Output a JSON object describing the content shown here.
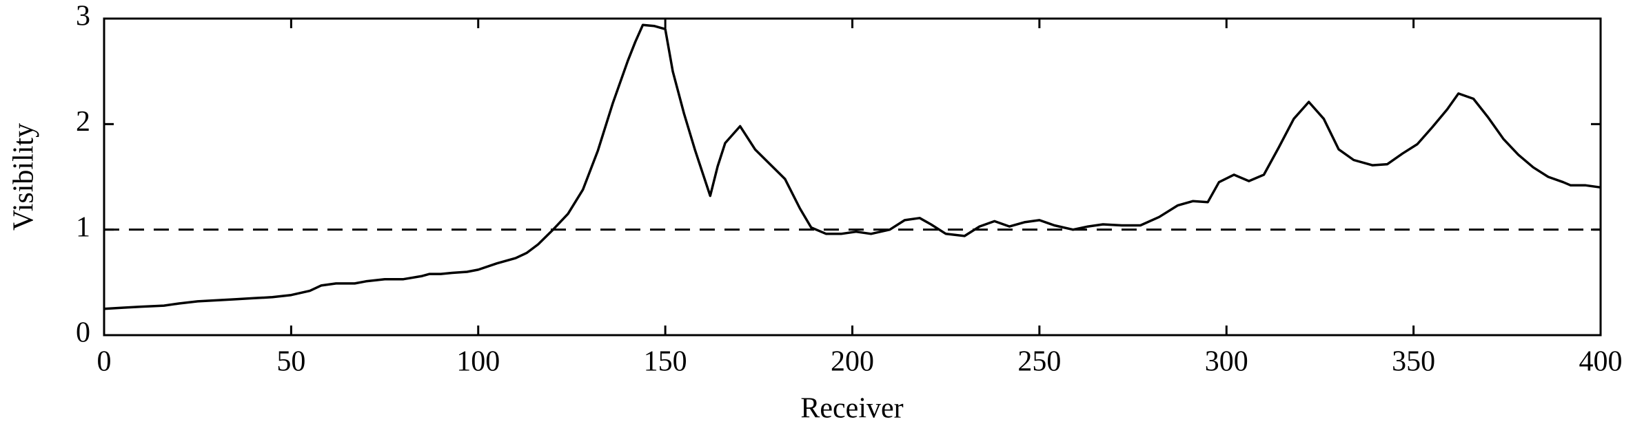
{
  "chart_data": {
    "type": "line",
    "xlabel": "Receiver",
    "ylabel": "Visibility",
    "x": [
      0,
      5,
      10,
      16,
      20,
      25,
      30,
      35,
      40,
      45,
      50,
      55,
      58,
      62,
      67,
      70,
      75,
      80,
      85,
      87,
      90,
      93,
      97,
      100,
      105,
      110,
      113,
      116,
      120,
      124,
      128,
      132,
      136,
      140,
      142,
      144,
      147,
      150,
      152,
      155,
      158,
      162,
      164,
      166,
      170,
      174,
      178,
      182,
      186,
      189,
      193,
      197,
      201,
      205,
      210,
      214,
      218,
      221,
      225,
      230,
      234,
      238,
      242,
      246,
      250,
      254,
      259,
      263,
      267,
      272,
      277,
      282,
      287,
      291,
      295,
      298,
      302,
      306,
      310,
      314,
      318,
      322,
      326,
      330,
      334,
      339,
      343,
      347,
      351,
      355,
      359,
      362,
      366,
      370,
      374,
      378,
      382,
      386,
      390,
      392,
      396,
      400
    ],
    "series": [
      {
        "color": "#000000",
        "values": [
          0.25,
          0.26,
          0.27,
          0.28,
          0.3,
          0.32,
          0.33,
          0.34,
          0.35,
          0.36,
          0.38,
          0.42,
          0.47,
          0.49,
          0.49,
          0.51,
          0.53,
          0.53,
          0.56,
          0.58,
          0.58,
          0.59,
          0.6,
          0.62,
          0.68,
          0.73,
          0.78,
          0.86,
          1.0,
          1.15,
          1.38,
          1.75,
          2.2,
          2.6,
          2.78,
          2.94,
          2.93,
          2.9,
          2.5,
          2.1,
          1.75,
          1.32,
          1.6,
          1.82,
          1.98,
          1.76,
          1.62,
          1.48,
          1.2,
          1.02,
          0.96,
          0.96,
          0.98,
          0.96,
          1.0,
          1.09,
          1.11,
          1.05,
          0.96,
          0.94,
          1.03,
          1.08,
          1.03,
          1.07,
          1.09,
          1.04,
          1.0,
          1.03,
          1.05,
          1.04,
          1.04,
          1.12,
          1.23,
          1.27,
          1.26,
          1.45,
          1.52,
          1.46,
          1.52,
          1.78,
          2.05,
          2.21,
          2.05,
          1.76,
          1.66,
          1.61,
          1.62,
          1.72,
          1.81,
          1.97,
          2.14,
          2.29,
          2.24,
          2.06,
          1.86,
          1.71,
          1.59,
          1.5,
          1.45,
          1.42,
          1.42,
          1.4
        ]
      }
    ],
    "reference_line": 1,
    "xlim": [
      0,
      400
    ],
    "xticks": [
      0,
      50,
      100,
      150,
      200,
      250,
      300,
      350,
      400
    ],
    "ylim": [
      0,
      3
    ],
    "yticks": [
      0,
      1,
      2,
      3
    ]
  }
}
